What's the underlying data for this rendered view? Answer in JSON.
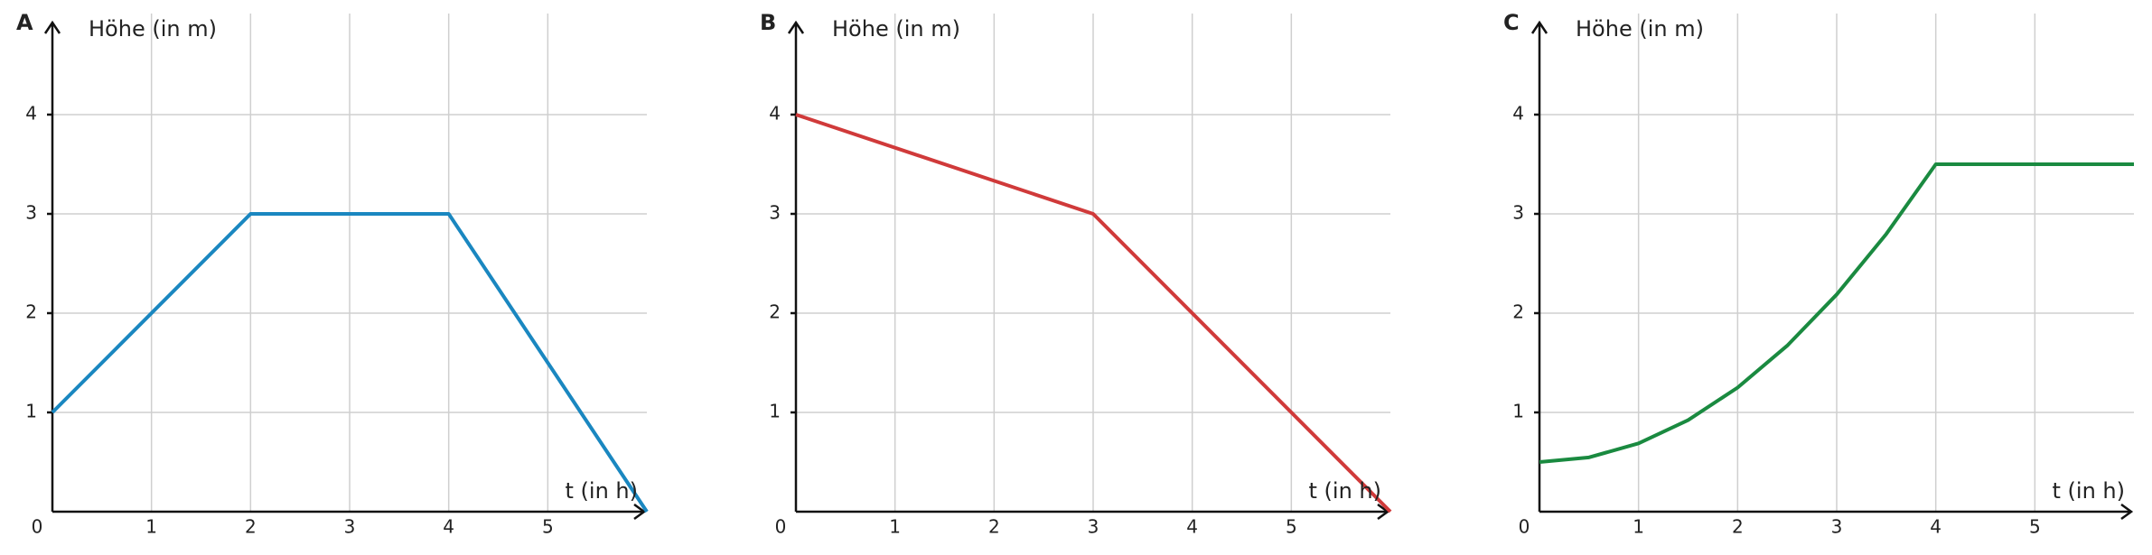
{
  "chart_data": [
    {
      "type": "line",
      "panel": "A",
      "ylabel": "Höhe (in m)",
      "xlabel": "t (in h)",
      "xlim": [
        0,
        6
      ],
      "ylim": [
        0,
        5
      ],
      "xticks": [
        0,
        1,
        2,
        3,
        4,
        5
      ],
      "yticks": [
        1,
        2,
        3,
        4
      ],
      "grid": true,
      "series": [
        {
          "color": "#1a87c0",
          "x": [
            0,
            2,
            4,
            6
          ],
          "values": [
            1,
            3,
            3,
            0
          ]
        }
      ]
    },
    {
      "type": "line",
      "panel": "B",
      "ylabel": "Höhe (in m)",
      "xlabel": "t (in h)",
      "xlim": [
        0,
        6
      ],
      "ylim": [
        0,
        5
      ],
      "xticks": [
        0,
        1,
        2,
        3,
        4,
        5
      ],
      "yticks": [
        1,
        2,
        3,
        4
      ],
      "grid": true,
      "series": [
        {
          "color": "#d03a3a",
          "x": [
            0,
            3,
            6
          ],
          "values": [
            4,
            3,
            0
          ]
        }
      ]
    },
    {
      "type": "line",
      "panel": "C",
      "ylabel": "Höhe (in m)",
      "xlabel": "t (in h)",
      "xlim": [
        0,
        6
      ],
      "ylim": [
        0,
        5
      ],
      "xticks": [
        0,
        1,
        2,
        3,
        4,
        5
      ],
      "yticks": [
        1,
        2,
        3,
        4
      ],
      "grid": true,
      "series": [
        {
          "color": "#1a8a40",
          "x": [
            0,
            0.5,
            1,
            1.5,
            2,
            2.5,
            3,
            3.5,
            4,
            5,
            6
          ],
          "values": [
            0.5,
            0.547,
            0.688,
            0.922,
            1.25,
            1.672,
            2.188,
            2.797,
            3.5,
            3.5,
            3.5
          ]
        }
      ]
    }
  ]
}
